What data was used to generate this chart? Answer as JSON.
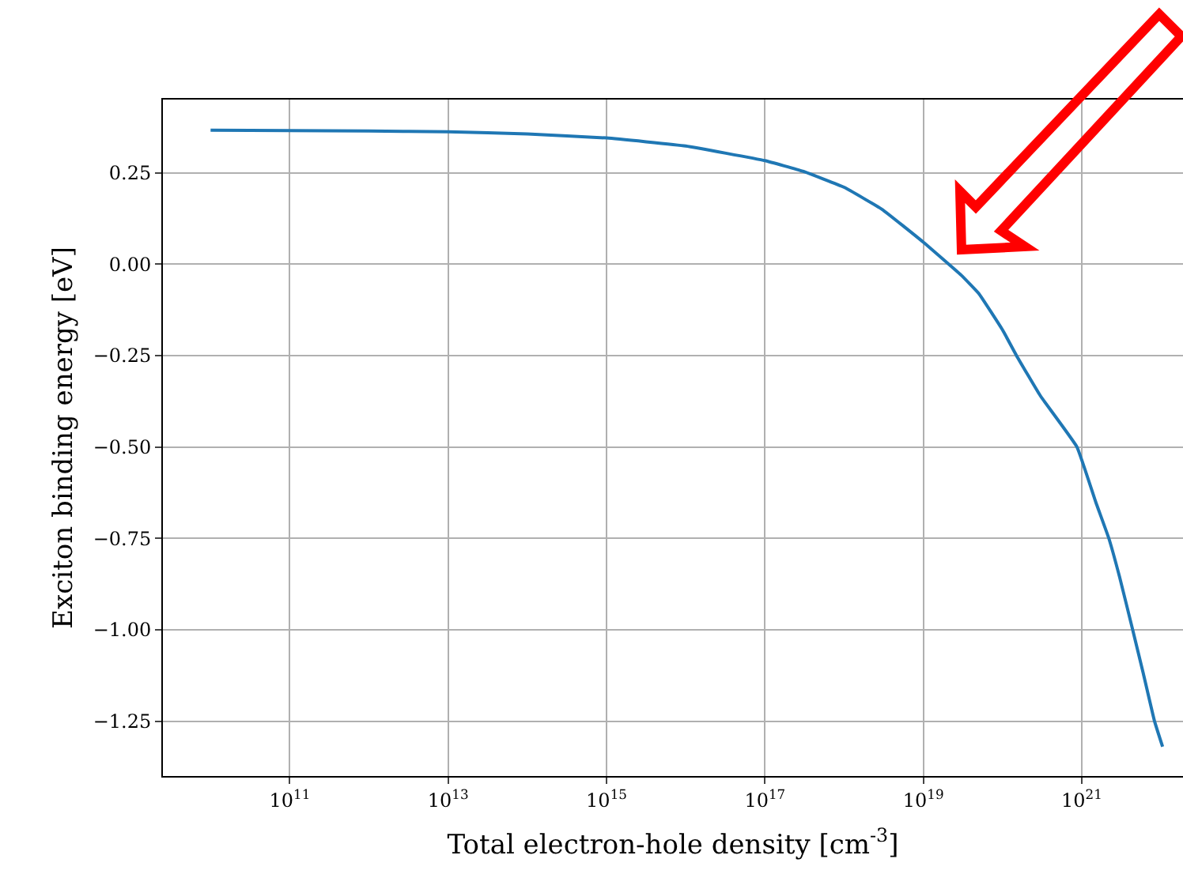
{
  "chart_data": {
    "type": "line",
    "xlabel": "Total electron-hole density [cm$^{-3}$]",
    "ylabel": "Exciton binding energy [eV]",
    "log": "x",
    "x": [
      10000000000.0,
      100000000000.0,
      1000000000000.0,
      10000000000000.0,
      100000000000000.0,
      1000000000000000.0,
      1e+16,
      1e+17,
      3e+17,
      1e+18,
      3e+18,
      1e+19,
      3e+19,
      5e+19,
      1e+20,
      1.5e+20,
      3e+20,
      8.7e+20,
      1.5e+21,
      2.2e+21,
      3e+21,
      4.4e+21,
      6e+21,
      8.3e+21,
      1.05e+22
    ],
    "series": [
      {
        "color": "#1f77b4",
        "values": [
          0.366,
          0.365,
          0.364,
          0.362,
          0.356,
          0.345,
          0.323,
          0.283,
          0.254,
          0.21,
          0.15,
          0.06,
          -0.03,
          -0.08,
          -0.18,
          -0.25,
          -0.36,
          -0.5,
          -0.65,
          -0.75,
          -0.855,
          -1.0,
          -1.12,
          -1.25,
          -1.32
        ]
      }
    ],
    "xlim": [
      2500000000.0,
      1.9e+22
    ],
    "xticks": [
      {
        "value": 100000000000.0,
        "label": "10$^{11}$"
      },
      {
        "value": 10000000000000.0,
        "label": "10$^{13}$"
      },
      {
        "value": 1000000000000000.0,
        "label": "10$^{15}$"
      },
      {
        "value": 1e+17,
        "label": "10$^{17}$"
      },
      {
        "value": 1e+19,
        "label": "10$^{19}$"
      },
      {
        "value": 1e+21,
        "label": "10$^{21}$"
      }
    ],
    "ylim": [
      -1.4,
      0.45
    ],
    "yticks": [
      0.25,
      {
        "value": 0,
        "label": "0.00"
      },
      {
        "value": -0.25,
        "label": "−0.25"
      },
      {
        "value": -0.5,
        "label": "−0.50"
      },
      {
        "value": -0.75,
        "label": "−0.75"
      },
      {
        "value": -1.0,
        "label": "−1.00"
      },
      {
        "value": -1.25,
        "label": "−1.25"
      }
    ],
    "grid": true,
    "marker": "none",
    "line_style": "solid"
  }
}
